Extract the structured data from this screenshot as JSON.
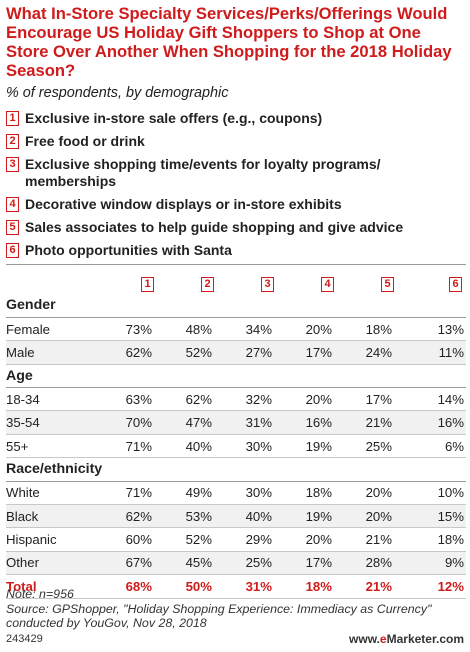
{
  "title": "What In-Store Specialty Services/Perks/Offerings Would Encourage US Holiday Gift Shoppers to Shop at One Store Over Another When Shopping for the 2018 Holiday Season?",
  "subtitle": "% of respondents, by demographic",
  "colors": {
    "accent": "#cf1b1b",
    "text": "#222222",
    "rule": "#9a9a9a"
  },
  "legend": [
    {
      "num": "1",
      "label": "Exclusive in-store sale offers (e.g., coupons)"
    },
    {
      "num": "2",
      "label": "Free food or drink"
    },
    {
      "num": "3",
      "label": "Exclusive shopping time/events for loyalty programs/ memberships"
    },
    {
      "num": "4",
      "label": "Decorative window displays or in-store exhibits"
    },
    {
      "num": "5",
      "label": "Sales associates to help guide shopping and give advice"
    },
    {
      "num": "6",
      "label": "Photo opportunities with Santa"
    }
  ],
  "chart_data": {
    "type": "table",
    "columns": [
      "1",
      "2",
      "3",
      "4",
      "5",
      "6"
    ],
    "groups": [
      {
        "name": "Gender",
        "rows": [
          {
            "label": "Female",
            "values": [
              "73%",
              "48%",
              "34%",
              "20%",
              "18%",
              "13%"
            ]
          },
          {
            "label": "Male",
            "values": [
              "62%",
              "52%",
              "27%",
              "17%",
              "24%",
              "11%"
            ]
          }
        ]
      },
      {
        "name": "Age",
        "rows": [
          {
            "label": "18-34",
            "values": [
              "63%",
              "62%",
              "32%",
              "20%",
              "17%",
              "14%"
            ]
          },
          {
            "label": "35-54",
            "values": [
              "70%",
              "47%",
              "31%",
              "16%",
              "21%",
              "16%"
            ]
          },
          {
            "label": "55+",
            "values": [
              "71%",
              "40%",
              "30%",
              "19%",
              "25%",
              "6%"
            ]
          }
        ]
      },
      {
        "name": "Race/ethnicity",
        "rows": [
          {
            "label": "White",
            "values": [
              "71%",
              "49%",
              "30%",
              "18%",
              "20%",
              "10%"
            ]
          },
          {
            "label": "Black",
            "values": [
              "62%",
              "53%",
              "40%",
              "19%",
              "20%",
              "15%"
            ]
          },
          {
            "label": "Hispanic",
            "values": [
              "60%",
              "52%",
              "29%",
              "20%",
              "21%",
              "18%"
            ]
          },
          {
            "label": "Other",
            "values": [
              "67%",
              "45%",
              "25%",
              "17%",
              "28%",
              "9%"
            ]
          }
        ]
      }
    ],
    "total": {
      "label": "Total",
      "values": [
        "68%",
        "50%",
        "31%",
        "18%",
        "21%",
        "12%"
      ]
    }
  },
  "notes": {
    "n": "Note: n=956",
    "source": "Source: GPShopper, \"Holiday Shopping Experience: Immediacy as Currency\" conducted by YouGov, Nov 28, 2018"
  },
  "footer": {
    "id": "243429",
    "brand_prefix": "www.",
    "brand_e": "e",
    "brand_name": "Marketer",
    "brand_suffix": ".com"
  }
}
